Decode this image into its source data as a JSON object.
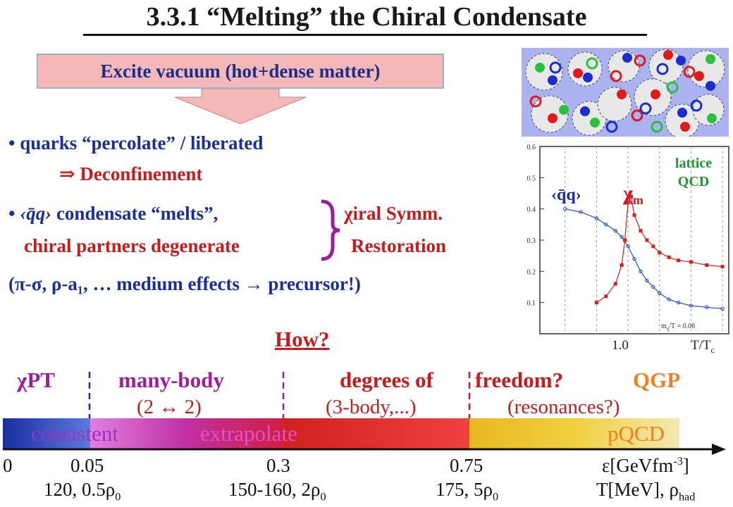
{
  "title": "3.3.1 “Melting” the Chiral Condensate",
  "vacuum_box": "Excite vacuum (hot+dense matter)",
  "bullets": {
    "b1_text": "quarks “percolate” / liberated",
    "b1_result": "⇒ Deconfinement",
    "b2_condensate": "‹q̄q›",
    "b2_text": " condensate “melts”,",
    "b2_partners": "chiral partners degenerate",
    "brace_top": "χiral Symm.",
    "brace_bottom": "Restoration",
    "b3_text": "(π-σ, ρ-a₁, … medium effects → precursor!)"
  },
  "lattice": {
    "label_line1": "lattice",
    "label_line2": "QCD",
    "qq_label": "‹q̄q›",
    "chi_label": "χ",
    "chi_sub": "m",
    "y_ticks": [
      "0.6",
      "0.5",
      "0.4",
      "0.3",
      "0.2",
      "0.1"
    ],
    "x_tick": "1.0",
    "x_label": "T/T",
    "x_label_sub": "c",
    "note": "m",
    "note_rest": "/T = 0.08",
    "note_sub": "q"
  },
  "how": "How?",
  "regions": {
    "chipt": "χPT",
    "many_body": "many-body",
    "many_body_sub": "(2 ↔ 2)",
    "dof": "degrees of",
    "dof_sub": "(3-body,...)",
    "freedom": "freedom?",
    "freedom_sub": "(resonances?)",
    "qgp": "QGP"
  },
  "bar": {
    "consistent": "consistent",
    "extrapolate": "extrapolate",
    "pqcd": "pQCD"
  },
  "energy_ticks": {
    "t0": "0",
    "t1": "0.05",
    "t2": "0.3",
    "t3": "0.75",
    "unit": "ε[GeVfm",
    "unit_sup": "-3",
    "unit_end": "]"
  },
  "temp_ticks": {
    "t1": "120, 0.5ρ",
    "t1_sub": "0",
    "t2": "150-160, 2ρ",
    "t2_sub": "0",
    "t3": "175, 5ρ",
    "t3_sub": "0",
    "unit": "T[MeV], ρ",
    "unit_sub": "had"
  },
  "colors": {
    "title": "#1a1a1a",
    "blue": "#1a2ea0",
    "red": "#cc1a1a",
    "purple": "#a01aa0",
    "orange": "#f08020",
    "green": "#1a9a2a"
  },
  "chart_data": {
    "type": "scatter",
    "series": [
      {
        "x": [
          0.8,
          0.85,
          0.9,
          0.93,
          0.96,
          0.98,
          1.0,
          1.02,
          1.04,
          1.06,
          1.08,
          1.1,
          1.13,
          1.16,
          1.2,
          1.25,
          1.3
        ],
        "y": [
          0.4,
          0.39,
          0.37,
          0.35,
          0.33,
          0.31,
          0.28,
          0.24,
          0.2,
          0.17,
          0.15,
          0.13,
          0.11,
          0.1,
          0.09,
          0.085,
          0.08
        ]
      },
      {
        "x": [
          0.9,
          0.93,
          0.96,
          0.98,
          0.99,
          1.0,
          1.01,
          1.02,
          1.04,
          1.06,
          1.08,
          1.1,
          1.13,
          1.16,
          1.2,
          1.25,
          1.3
        ],
        "y": [
          0.1,
          0.12,
          0.16,
          0.22,
          0.3,
          0.42,
          0.44,
          0.38,
          0.33,
          0.3,
          0.28,
          0.26,
          0.245,
          0.235,
          0.23,
          0.22,
          0.215
        ]
      }
    ],
    "ylim": [
      0,
      0.6
    ],
    "yticks": [
      0.1,
      0.2,
      0.3,
      0.4,
      0.5,
      0.6
    ]
  }
}
